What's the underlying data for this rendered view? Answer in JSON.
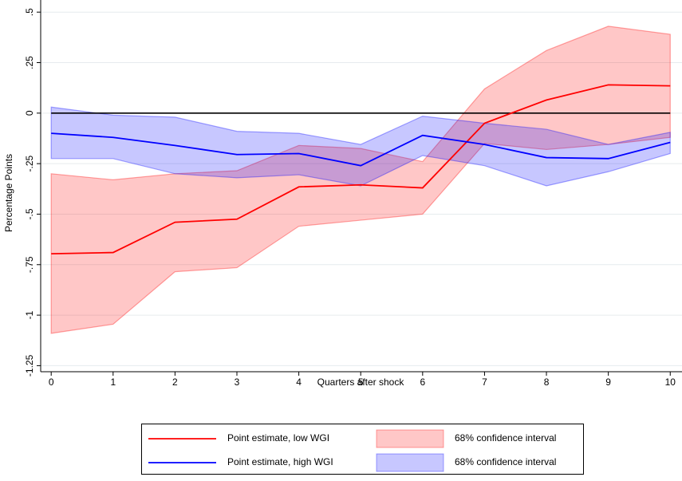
{
  "chart_data": {
    "type": "line",
    "x_label": "Quarters after shock",
    "y_label": "Percentage Points",
    "x": [
      0,
      1,
      2,
      3,
      4,
      5,
      6,
      7,
      8,
      9,
      10
    ],
    "xlim": [
      -0.17,
      10.19
    ],
    "xticks": [
      0,
      1,
      2,
      3,
      4,
      5,
      6,
      7,
      8,
      9,
      10
    ],
    "ylim": [
      -1.28,
      0.56
    ],
    "yticks": [
      {
        "value": 0.5,
        "label": ".5"
      },
      {
        "value": 0.25,
        "label": ".25"
      },
      0,
      {
        "value": -0.25,
        "label": "-.25"
      },
      {
        "value": -0.5,
        "label": "-.5"
      },
      {
        "value": -0.75,
        "label": "-.75"
      },
      -1,
      {
        "value": -1.25,
        "label": "-1.25"
      }
    ],
    "grid": true,
    "hline": 0,
    "bands": [
      {
        "name": "68% confidence interval",
        "color": "#ff0000",
        "upper": [
          -0.3,
          -0.33,
          -0.3,
          -0.285,
          -0.16,
          -0.175,
          -0.24,
          0.12,
          0.31,
          0.43,
          0.39
        ],
        "lower": [
          -1.09,
          -1.045,
          -0.785,
          -0.765,
          -0.56,
          -0.53,
          -0.5,
          -0.15,
          -0.18,
          -0.155,
          -0.12
        ]
      },
      {
        "name": "68% confidence interval",
        "color": "#0000ff",
        "upper": [
          0.03,
          -0.01,
          -0.02,
          -0.09,
          -0.1,
          -0.155,
          -0.015,
          -0.05,
          -0.08,
          -0.155,
          -0.095
        ],
        "lower": [
          -0.225,
          -0.225,
          -0.3,
          -0.32,
          -0.305,
          -0.36,
          -0.21,
          -0.26,
          -0.36,
          -0.29,
          -0.2
        ]
      }
    ],
    "series": [
      {
        "name": "Point estimate, low WGI",
        "color": "#ff0000",
        "values": [
          -0.696,
          -0.69,
          -0.54,
          -0.525,
          -0.365,
          -0.355,
          -0.37,
          -0.05,
          0.065,
          0.14,
          0.135
        ]
      },
      {
        "name": "Point estimate, high WGI",
        "color": "#0000ff",
        "values": [
          -0.1,
          -0.12,
          -0.16,
          -0.205,
          -0.2,
          -0.26,
          -0.11,
          -0.155,
          -0.22,
          -0.225,
          -0.145
        ]
      }
    ]
  }
}
